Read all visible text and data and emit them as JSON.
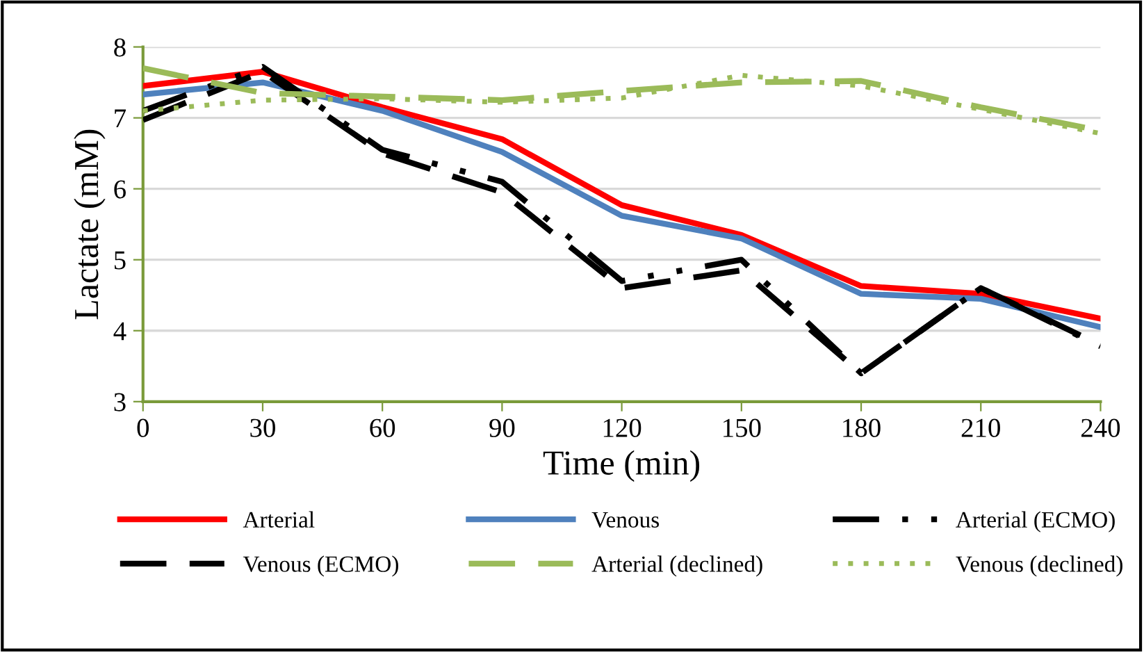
{
  "chart_data": {
    "type": "line",
    "xlabel": "Time (min)",
    "ylabel": "Lactate (mM)",
    "x": [
      0,
      30,
      60,
      90,
      120,
      150,
      180,
      210,
      240
    ],
    "xlim": [
      0,
      240
    ],
    "xticks": [
      0,
      30,
      60,
      90,
      120,
      150,
      180,
      210,
      240
    ],
    "ylim": [
      3,
      8
    ],
    "yticks": [
      3,
      4,
      5,
      6,
      7,
      8
    ],
    "grid": "y",
    "legend": "bottom",
    "series": [
      {
        "name": "Arterial",
        "color": "#ff0000",
        "line_style": "solid",
        "values": [
          7.45,
          7.65,
          7.15,
          6.7,
          5.77,
          5.35,
          4.63,
          4.52,
          4.17
        ]
      },
      {
        "name": "Venous",
        "color": "#4f81bd",
        "line_style": "solid",
        "values": [
          7.33,
          7.5,
          7.1,
          6.52,
          5.62,
          5.3,
          4.52,
          4.45,
          4.05
        ]
      },
      {
        "name": "Arterial (ECMO)",
        "color": "#000000",
        "line_style": "dashdot",
        "values": [
          7.1,
          7.72,
          6.55,
          6.1,
          4.7,
          5.0,
          3.4,
          4.6,
          3.78
        ]
      },
      {
        "name": "Venous (ECMO)",
        "color": "#000000",
        "line_style": "dashed",
        "values": [
          6.97,
          7.65,
          6.5,
          5.95,
          4.6,
          4.85,
          3.4,
          4.6,
          3.8
        ]
      },
      {
        "name": "Arterial (declined)",
        "color": "#9bbb59",
        "line_style": "dashed",
        "values": [
          7.7,
          7.35,
          7.3,
          7.25,
          7.38,
          7.5,
          7.52,
          7.15,
          6.82
        ]
      },
      {
        "name": "Venous (declined)",
        "color": "#9bbb59",
        "line_style": "dotted",
        "values": [
          7.1,
          7.25,
          7.27,
          7.22,
          7.28,
          7.6,
          7.45,
          7.12,
          6.78
        ]
      }
    ]
  }
}
